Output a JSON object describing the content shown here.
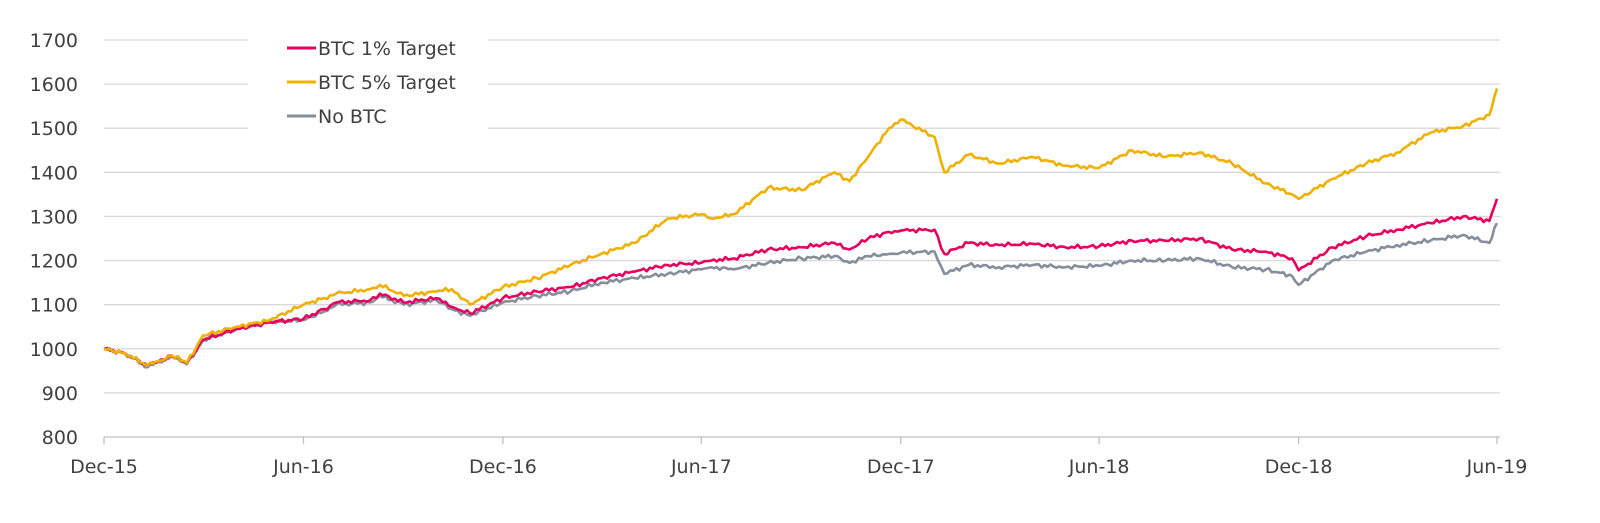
{
  "chart_data": {
    "type": "line",
    "title": "",
    "xlabel": "",
    "ylabel": "",
    "ylim": [
      800,
      1700
    ],
    "yticks": [
      "800",
      "900",
      "1000",
      "1100",
      "1200",
      "1300",
      "1400",
      "1500",
      "1600",
      "1700"
    ],
    "xlim": [
      "2015-12-01",
      "2019-06-01"
    ],
    "xticks": [
      {
        "date": "2015-12-01",
        "label": "Dec-15"
      },
      {
        "date": "2016-06-01",
        "label": "Jun-16"
      },
      {
        "date": "2016-12-01",
        "label": "Dec-16"
      },
      {
        "date": "2017-06-01",
        "label": "Jun-17"
      },
      {
        "date": "2017-12-01",
        "label": "Dec-17"
      },
      {
        "date": "2018-06-01",
        "label": "Jun-18"
      },
      {
        "date": "2018-12-01",
        "label": "Dec-18"
      },
      {
        "date": "2019-06-01",
        "label": "Jun-19"
      }
    ],
    "grid": "horizontal",
    "legend_position": "top-left",
    "x": [
      "2015-12-01",
      "2015-12-20",
      "2016-01-10",
      "2016-01-20",
      "2016-02-01",
      "2016-02-15",
      "2016-03-01",
      "2016-04-01",
      "2016-05-01",
      "2016-06-01",
      "2016-06-20",
      "2016-07-01",
      "2016-08-01",
      "2016-08-10",
      "2016-09-01",
      "2016-10-01",
      "2016-10-15",
      "2016-11-01",
      "2016-12-01",
      "2017-01-01",
      "2017-02-01",
      "2017-03-01",
      "2017-04-01",
      "2017-05-01",
      "2017-06-01",
      "2017-06-10",
      "2017-07-01",
      "2017-08-01",
      "2017-09-01",
      "2017-10-01",
      "2017-10-15",
      "2017-11-01",
      "2017-11-20",
      "2017-12-01",
      "2018-01-01",
      "2018-01-10",
      "2018-02-01",
      "2018-03-01",
      "2018-04-01",
      "2018-05-01",
      "2018-06-01",
      "2018-07-01",
      "2018-08-01",
      "2018-09-01",
      "2018-10-01",
      "2018-11-01",
      "2018-11-25",
      "2018-12-01",
      "2019-01-01",
      "2019-02-01",
      "2019-03-01",
      "2019-04-01",
      "2019-05-01",
      "2019-05-25",
      "2019-06-01"
    ],
    "series": [
      {
        "name": "BTC 1% Target",
        "color": "#E8005F",
        "values": [
          1000,
          990,
          962,
          972,
          985,
          968,
          1020,
          1045,
          1060,
          1068,
          1090,
          1105,
          1110,
          1125,
          1105,
          1115,
          1095,
          1080,
          1115,
          1130,
          1140,
          1160,
          1175,
          1190,
          1195,
          1200,
          1205,
          1225,
          1230,
          1240,
          1225,
          1250,
          1265,
          1268,
          1270,
          1215,
          1240,
          1235,
          1238,
          1230,
          1232,
          1245,
          1245,
          1250,
          1225,
          1220,
          1205,
          1178,
          1230,
          1255,
          1270,
          1285,
          1300,
          1290,
          1340
        ]
      },
      {
        "name": "BTC 5% Target",
        "color": "#F0B000",
        "values": [
          1000,
          990,
          962,
          972,
          985,
          968,
          1030,
          1050,
          1065,
          1100,
          1115,
          1125,
          1135,
          1145,
          1120,
          1130,
          1135,
          1100,
          1140,
          1160,
          1190,
          1215,
          1240,
          1295,
          1305,
          1295,
          1305,
          1365,
          1360,
          1400,
          1380,
          1435,
          1500,
          1520,
          1480,
          1400,
          1440,
          1420,
          1435,
          1415,
          1410,
          1450,
          1435,
          1445,
          1420,
          1375,
          1350,
          1340,
          1385,
          1420,
          1445,
          1490,
          1505,
          1530,
          1590
        ]
      },
      {
        "name": "No BTC",
        "color": "#868E9B",
        "values": [
          1000,
          990,
          958,
          970,
          982,
          965,
          1020,
          1045,
          1060,
          1065,
          1085,
          1100,
          1105,
          1120,
          1100,
          1110,
          1090,
          1075,
          1105,
          1120,
          1130,
          1150,
          1160,
          1170,
          1180,
          1185,
          1180,
          1195,
          1205,
          1210,
          1195,
          1210,
          1215,
          1218,
          1220,
          1170,
          1190,
          1185,
          1190,
          1185,
          1188,
          1200,
          1200,
          1205,
          1185,
          1180,
          1165,
          1145,
          1200,
          1220,
          1235,
          1245,
          1258,
          1240,
          1285
        ]
      }
    ]
  }
}
